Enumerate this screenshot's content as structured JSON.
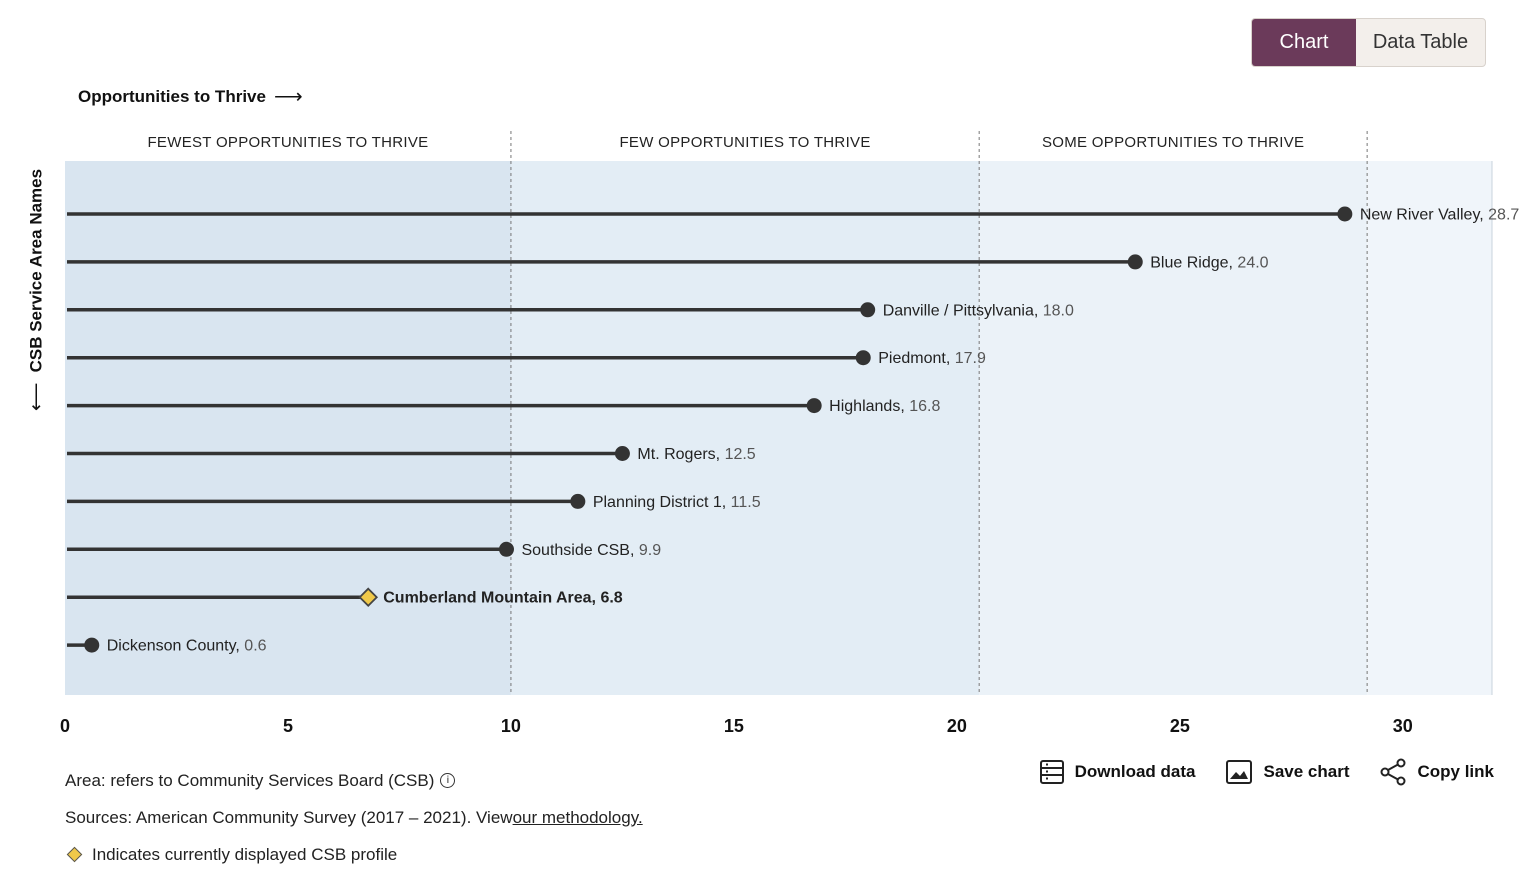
{
  "toggle": {
    "chart_label": "Chart",
    "table_label": "Data Table"
  },
  "heading": {
    "text": "Opportunities to Thrive",
    "arrow": "⟶"
  },
  "y_title": {
    "text": "CSB Service Area Names",
    "arrow": "⟵"
  },
  "footer": {
    "area_note": "Area: refers to Community Services Board (CSB)",
    "sources_prefix": "Sources: American Community Survey (2017 – 2021). View ",
    "methodology_link": "our methodology.",
    "legend_note": "Indicates currently displayed CSB profile"
  },
  "actions": {
    "download": "Download data",
    "save": "Save chart",
    "copy": "Copy link"
  },
  "colors": {
    "band_fewest": "#d9e5f0",
    "band_few": "#e3edf5",
    "band_some": "#ebf2f8",
    "band_more": "#f0f5fa",
    "line": "#333333",
    "highlight": "#f0c94a",
    "accent": "#6b3a5a"
  },
  "chart_data": {
    "type": "lollipop",
    "x_ticks": [
      {
        "label": "0",
        "value": 0
      },
      {
        "label": "5",
        "value": 5
      },
      {
        "label": "10",
        "value": 10
      },
      {
        "label": "15",
        "value": 15
      },
      {
        "label": "20",
        "value": 20
      },
      {
        "label": "25",
        "value": 25
      },
      {
        "label": "30",
        "value": 30
      }
    ],
    "bands": [
      {
        "label": "FEWEST OPPORTUNITIES TO THRIVE",
        "from": 0,
        "to": 10
      },
      {
        "label": "FEW OPPORTUNITIES TO THRIVE",
        "from": 10,
        "to": 20.5
      },
      {
        "label": "SOME  OPPORTUNITIES TO THRIVE",
        "from": 20.5,
        "to": 29.2
      },
      {
        "label": "",
        "from": 29.2,
        "to": 32
      }
    ],
    "points": [
      {
        "name": "New River Valley",
        "value": 28.7,
        "value_label": "28.7",
        "highlight": false
      },
      {
        "name": "Blue Ridge",
        "value": 24.0,
        "value_label": "24.0",
        "highlight": false
      },
      {
        "name": "Danville / Pittsylvania",
        "value": 18.0,
        "value_label": "18.0",
        "highlight": false
      },
      {
        "name": "Piedmont",
        "value": 17.9,
        "value_label": "17.9",
        "highlight": false
      },
      {
        "name": "Highlands",
        "value": 16.8,
        "value_label": "16.8",
        "highlight": false
      },
      {
        "name": "Mt. Rogers",
        "value": 12.5,
        "value_label": "12.5",
        "highlight": false
      },
      {
        "name": "Planning District 1",
        "value": 11.5,
        "value_label": "11.5",
        "highlight": false
      },
      {
        "name": "Southside CSB",
        "value": 9.9,
        "value_label": "9.9",
        "highlight": false
      },
      {
        "name": "Cumberland Mountain Area",
        "value": 6.8,
        "value_label": "6.8",
        "highlight": true
      },
      {
        "name": "Dickenson County",
        "value": 0.6,
        "value_label": "0.6",
        "highlight": false
      }
    ]
  }
}
